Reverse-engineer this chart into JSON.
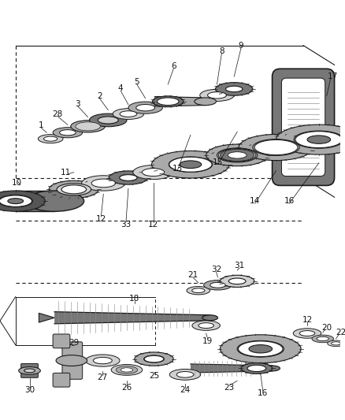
{
  "bg_color": "#ffffff",
  "lc": "#1a1a1a",
  "gc_light": "#d0d0d0",
  "gc_mid": "#aaaaaa",
  "gc_dark": "#777777",
  "gc_vdark": "#555555",
  "figsize": [
    4.38,
    5.33
  ],
  "dpi": 100
}
